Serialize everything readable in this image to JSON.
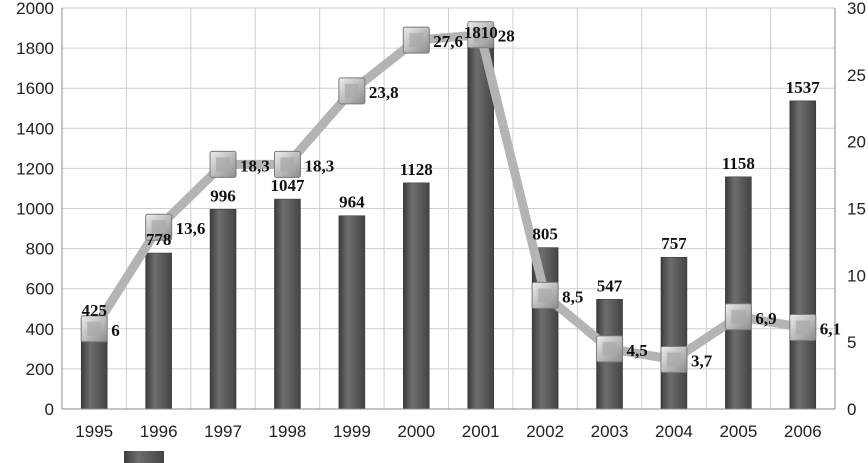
{
  "chart_data": {
    "type": "bar",
    "categories": [
      "1995",
      "1996",
      "1997",
      "1998",
      "1999",
      "2000",
      "2001",
      "2002",
      "2003",
      "2004",
      "2005",
      "2006"
    ],
    "series": [
      {
        "type": "bar",
        "axis": "left",
        "values": [
          425,
          778,
          996,
          1047,
          964,
          1128,
          1810,
          805,
          547,
          757,
          1158,
          1537
        ],
        "labels": [
          "425",
          "778",
          "996",
          "1047",
          "964",
          "1128",
          "1810",
          "805",
          "547",
          "757",
          "1158",
          "1537"
        ],
        "color": "#5a5a5a"
      },
      {
        "type": "line",
        "axis": "right",
        "values": [
          6,
          13.6,
          18.3,
          18.3,
          23.8,
          27.6,
          28,
          8.5,
          4.5,
          3.7,
          6.9,
          6.1
        ],
        "labels": [
          "6",
          "13,6",
          "18,3",
          "18,3",
          "23,8",
          "27,6",
          "28",
          "8,5",
          "4,5",
          "3,7",
          "6,9",
          "6,1"
        ],
        "color": "#b4b4b4"
      }
    ],
    "ylim": [
      0,
      2000
    ],
    "y2lim": [
      0,
      30
    ],
    "yticks": [
      "0",
      "200",
      "400",
      "600",
      "800",
      "1000",
      "1200",
      "1400",
      "1600",
      "1800",
      "2000"
    ],
    "y2ticks": [
      "0",
      "5",
      "10",
      "15",
      "20",
      "25",
      "30"
    ],
    "grid": true,
    "legend": "bottom-left"
  }
}
